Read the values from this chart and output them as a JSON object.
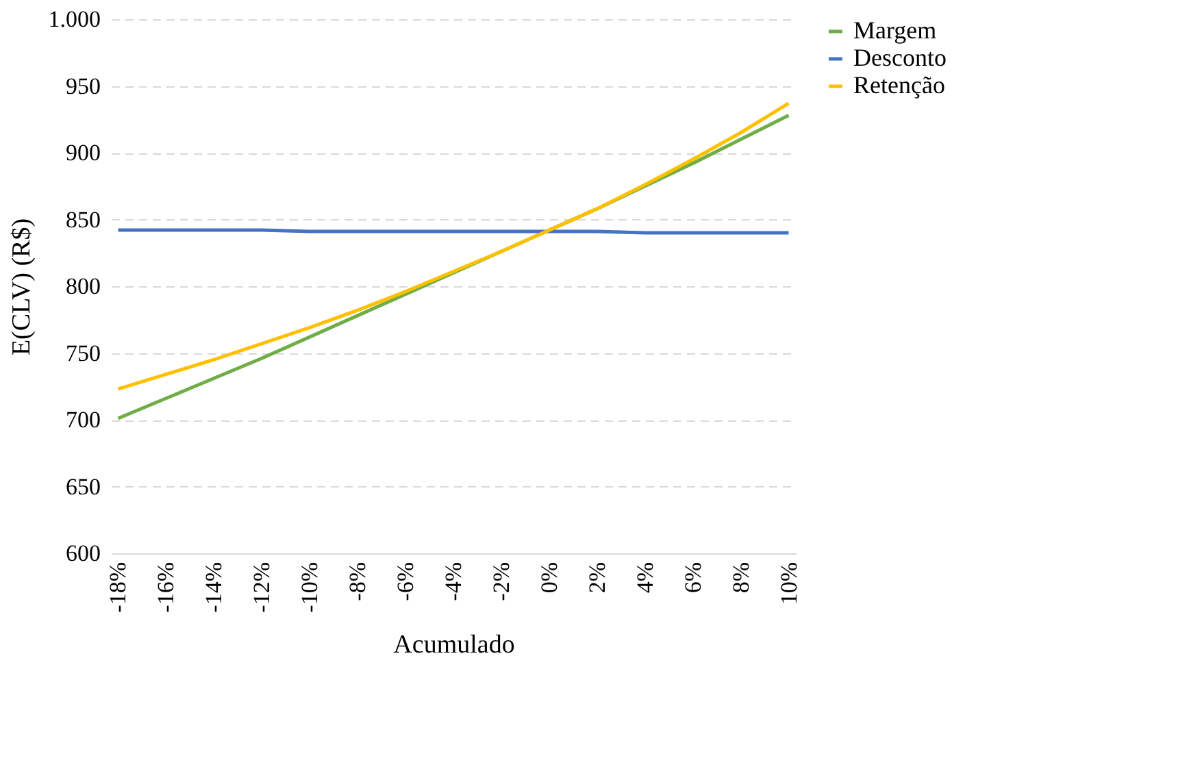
{
  "chart_data": {
    "type": "line",
    "xlabel": "Acumulado",
    "ylabel": "E(CLV) (R$)",
    "categories": [
      "-18%",
      "-16%",
      "-14%",
      "-12%",
      "-10%",
      "-8%",
      "-6%",
      "-4%",
      "-2%",
      "0%",
      "2%",
      "4%",
      "6%",
      "8%",
      "10%"
    ],
    "series": [
      {
        "name": "Margem",
        "color": "#70ad47",
        "values": [
          701,
          716,
          731,
          746,
          762,
          778,
          794,
          810,
          826,
          842,
          858,
          875,
          892,
          910,
          928
        ]
      },
      {
        "name": "Desconto",
        "color": "#4472c4",
        "values": [
          842,
          842,
          842,
          842,
          841,
          841,
          841,
          841,
          841,
          841,
          841,
          840,
          840,
          840,
          840
        ]
      },
      {
        "name": "Retenção",
        "color": "#ffc000",
        "values": [
          723,
          734,
          745,
          757,
          769,
          782,
          796,
          811,
          826,
          842,
          858,
          876,
          895,
          915,
          937
        ]
      }
    ],
    "ylim": [
      600,
      1000
    ],
    "yticks": [
      600,
      650,
      700,
      750,
      800,
      850,
      900,
      950,
      {
        "value": 1000,
        "label": "1.000"
      }
    ],
    "grid": "y",
    "legend": "right",
    "marker": "none",
    "line_style": "solid"
  }
}
